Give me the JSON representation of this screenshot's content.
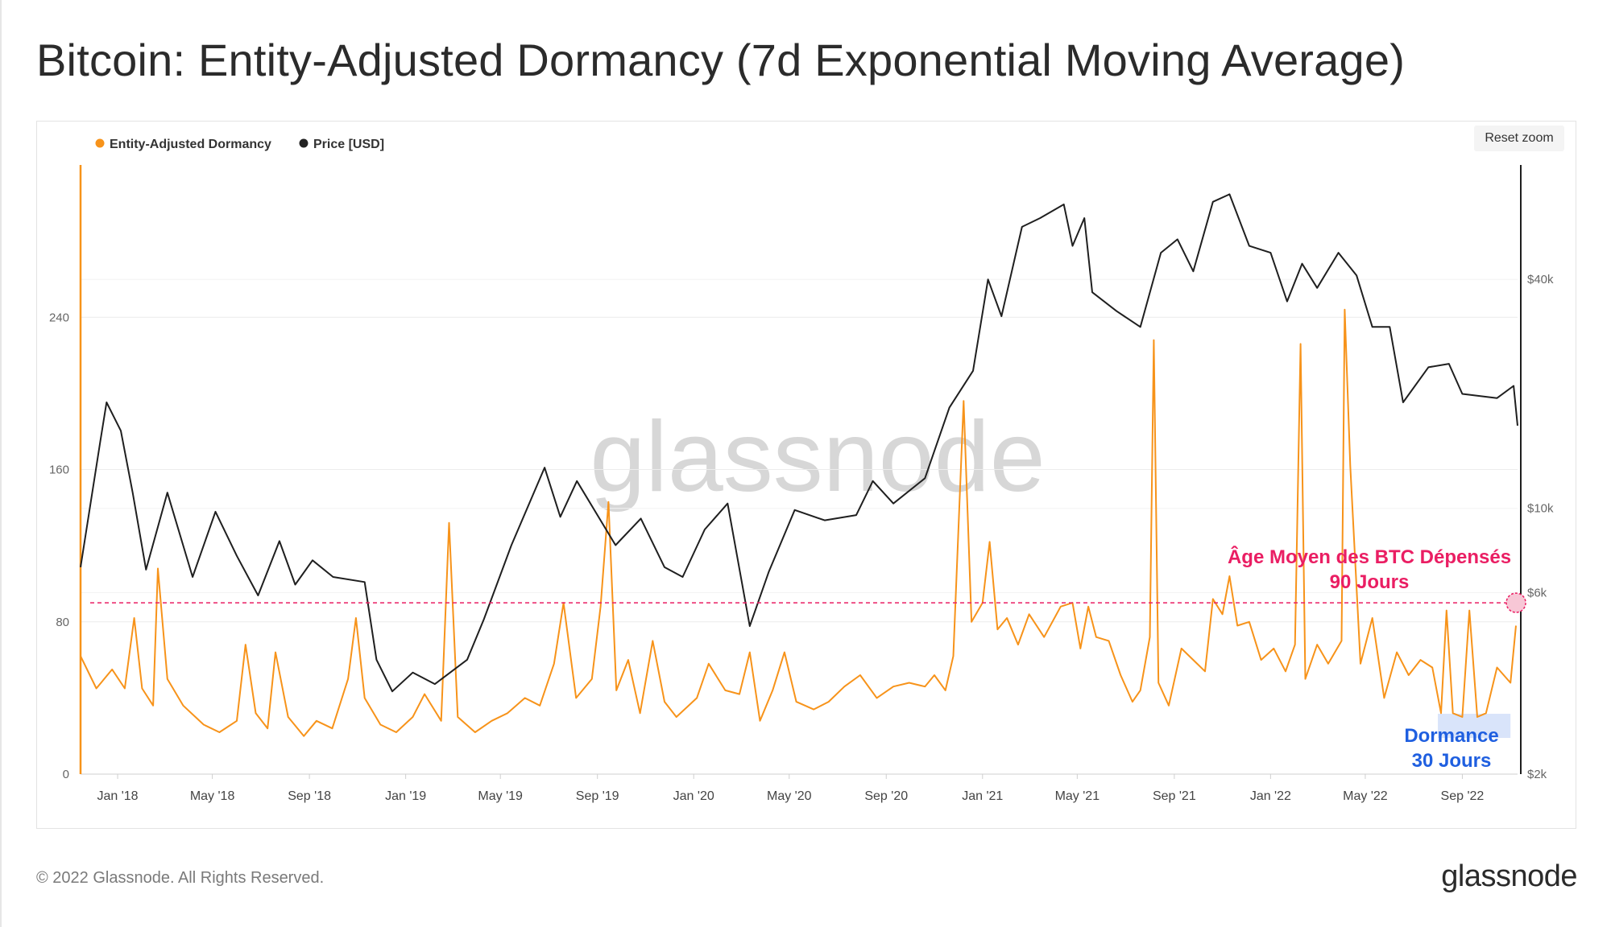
{
  "header": {
    "title": "Bitcoin: Entity-Adjusted Dormancy (7d Exponential Moving Average)"
  },
  "toolbar": {
    "reset_zoom_label": "Reset zoom"
  },
  "footer": {
    "copyright": "© 2022 Glassnode. All Rights Reserved.",
    "logo_text": "glassnode"
  },
  "watermark": "glassnode",
  "colors": {
    "dormancy": "#f7931a",
    "price": "#1f1f1f",
    "threshold": "#ea1e63",
    "annotation_blue": "#1f5fe0"
  },
  "chart_data": {
    "type": "line",
    "title": "Bitcoin: Entity-Adjusted Dormancy (7d Exponential Moving Average)",
    "legend": {
      "position": "top-left",
      "items": [
        "Entity-Adjusted Dormancy",
        "Price [USD]"
      ]
    },
    "x_range": [
      "2017-11-15",
      "2022-11-10"
    ],
    "x_ticks": [
      "Jan '18",
      "May '18",
      "Sep '18",
      "Jan '19",
      "May '19",
      "Sep '19",
      "Jan '20",
      "May '20",
      "Sep '20",
      "Jan '21",
      "May '21",
      "Sep '21",
      "Jan '22",
      "May '22",
      "Sep '22"
    ],
    "x_tick_dates": [
      "2018-01-01",
      "2018-05-01",
      "2018-09-01",
      "2019-01-01",
      "2019-05-01",
      "2019-09-01",
      "2020-01-01",
      "2020-05-01",
      "2020-09-01",
      "2021-01-01",
      "2021-05-01",
      "2021-09-01",
      "2022-01-01",
      "2022-05-01",
      "2022-09-01"
    ],
    "y_left": {
      "ticks": [
        0,
        80,
        160,
        240
      ],
      "tick_labels": [
        "0",
        "80",
        "160",
        "240"
      ],
      "ylim": [
        0,
        320
      ]
    },
    "y_right": {
      "scale": "log",
      "ticks": [
        2000,
        6000,
        10000,
        40000
      ],
      "tick_labels": [
        "$2k",
        "$6k",
        "$10k",
        "$40k"
      ],
      "ylim": [
        2000,
        80000
      ]
    },
    "grid": true,
    "series": [
      {
        "name": "Entity-Adjusted Dormancy",
        "axis": "left",
        "color": "#f7931a",
        "points": [
          [
            "2017-11-15",
            62
          ],
          [
            "2017-12-05",
            45
          ],
          [
            "2017-12-25",
            55
          ],
          [
            "2018-01-10",
            45
          ],
          [
            "2018-01-22",
            82
          ],
          [
            "2018-02-01",
            45
          ],
          [
            "2018-02-15",
            36
          ],
          [
            "2018-02-21",
            108
          ],
          [
            "2018-03-05",
            50
          ],
          [
            "2018-03-25",
            36
          ],
          [
            "2018-04-20",
            26
          ],
          [
            "2018-05-10",
            22
          ],
          [
            "2018-06-01",
            28
          ],
          [
            "2018-06-12",
            68
          ],
          [
            "2018-06-25",
            32
          ],
          [
            "2018-07-10",
            24
          ],
          [
            "2018-07-20",
            64
          ],
          [
            "2018-08-05",
            30
          ],
          [
            "2018-08-25",
            20
          ],
          [
            "2018-09-10",
            28
          ],
          [
            "2018-09-30",
            24
          ],
          [
            "2018-10-20",
            50
          ],
          [
            "2018-10-30",
            82
          ],
          [
            "2018-11-10",
            40
          ],
          [
            "2018-11-30",
            26
          ],
          [
            "2018-12-20",
            22
          ],
          [
            "2019-01-10",
            30
          ],
          [
            "2019-01-25",
            42
          ],
          [
            "2019-02-15",
            28
          ],
          [
            "2019-02-25",
            132
          ],
          [
            "2019-03-08",
            30
          ],
          [
            "2019-03-30",
            22
          ],
          [
            "2019-04-20",
            28
          ],
          [
            "2019-05-10",
            32
          ],
          [
            "2019-06-01",
            40
          ],
          [
            "2019-06-20",
            36
          ],
          [
            "2019-07-08",
            58
          ],
          [
            "2019-07-20",
            90
          ],
          [
            "2019-08-05",
            40
          ],
          [
            "2019-08-25",
            50
          ],
          [
            "2019-09-05",
            88
          ],
          [
            "2019-09-15",
            143
          ],
          [
            "2019-09-25",
            44
          ],
          [
            "2019-10-10",
            60
          ],
          [
            "2019-10-25",
            32
          ],
          [
            "2019-11-10",
            70
          ],
          [
            "2019-11-25",
            38
          ],
          [
            "2019-12-10",
            30
          ],
          [
            "2020-01-05",
            40
          ],
          [
            "2020-01-20",
            58
          ],
          [
            "2020-02-10",
            44
          ],
          [
            "2020-02-28",
            42
          ],
          [
            "2020-03-12",
            64
          ],
          [
            "2020-03-25",
            28
          ],
          [
            "2020-04-10",
            44
          ],
          [
            "2020-04-25",
            64
          ],
          [
            "2020-05-10",
            38
          ],
          [
            "2020-06-01",
            34
          ],
          [
            "2020-06-20",
            38
          ],
          [
            "2020-07-10",
            46
          ],
          [
            "2020-07-30",
            52
          ],
          [
            "2020-08-20",
            40
          ],
          [
            "2020-09-10",
            46
          ],
          [
            "2020-09-30",
            48
          ],
          [
            "2020-10-20",
            46
          ],
          [
            "2020-11-01",
            52
          ],
          [
            "2020-11-15",
            44
          ],
          [
            "2020-11-25",
            62
          ],
          [
            "2020-12-08",
            196
          ],
          [
            "2020-12-18",
            80
          ],
          [
            "2021-01-01",
            90
          ],
          [
            "2021-01-10",
            122
          ],
          [
            "2021-01-20",
            76
          ],
          [
            "2021-02-01",
            82
          ],
          [
            "2021-02-15",
            68
          ],
          [
            "2021-03-01",
            84
          ],
          [
            "2021-03-20",
            72
          ],
          [
            "2021-04-10",
            88
          ],
          [
            "2021-04-25",
            90
          ],
          [
            "2021-05-05",
            66
          ],
          [
            "2021-05-15",
            88
          ],
          [
            "2021-05-25",
            72
          ],
          [
            "2021-06-10",
            70
          ],
          [
            "2021-06-25",
            52
          ],
          [
            "2021-07-10",
            38
          ],
          [
            "2021-07-20",
            44
          ],
          [
            "2021-08-01",
            72
          ],
          [
            "2021-08-06",
            228
          ],
          [
            "2021-08-12",
            48
          ],
          [
            "2021-08-25",
            36
          ],
          [
            "2021-09-10",
            66
          ],
          [
            "2021-09-25",
            60
          ],
          [
            "2021-10-10",
            54
          ],
          [
            "2021-10-20",
            92
          ],
          [
            "2021-11-01",
            84
          ],
          [
            "2021-11-10",
            104
          ],
          [
            "2021-11-20",
            78
          ],
          [
            "2021-12-05",
            80
          ],
          [
            "2021-12-20",
            60
          ],
          [
            "2022-01-05",
            66
          ],
          [
            "2022-01-20",
            54
          ],
          [
            "2022-02-01",
            68
          ],
          [
            "2022-02-08",
            226
          ],
          [
            "2022-02-14",
            50
          ],
          [
            "2022-03-01",
            68
          ],
          [
            "2022-03-15",
            58
          ],
          [
            "2022-04-01",
            70
          ],
          [
            "2022-04-05",
            244
          ],
          [
            "2022-04-12",
            162
          ],
          [
            "2022-04-25",
            58
          ],
          [
            "2022-05-10",
            82
          ],
          [
            "2022-05-25",
            40
          ],
          [
            "2022-06-10",
            64
          ],
          [
            "2022-06-25",
            52
          ],
          [
            "2022-07-10",
            60
          ],
          [
            "2022-07-25",
            56
          ],
          [
            "2022-08-05",
            32
          ],
          [
            "2022-08-12",
            86
          ],
          [
            "2022-08-20",
            32
          ],
          [
            "2022-09-01",
            30
          ],
          [
            "2022-09-10",
            86
          ],
          [
            "2022-09-20",
            30
          ],
          [
            "2022-10-01",
            32
          ],
          [
            "2022-10-15",
            56
          ],
          [
            "2022-11-01",
            48
          ],
          [
            "2022-11-08",
            78
          ]
        ]
      },
      {
        "name": "Price [USD]",
        "axis": "right",
        "color": "#1f1f1f",
        "points": [
          [
            "2017-11-15",
            7000
          ],
          [
            "2017-12-10",
            15000
          ],
          [
            "2017-12-18",
            19000
          ],
          [
            "2018-01-05",
            16000
          ],
          [
            "2018-01-20",
            11000
          ],
          [
            "2018-02-06",
            6900
          ],
          [
            "2018-03-05",
            11000
          ],
          [
            "2018-04-06",
            6600
          ],
          [
            "2018-05-05",
            9800
          ],
          [
            "2018-06-01",
            7500
          ],
          [
            "2018-06-28",
            5900
          ],
          [
            "2018-07-25",
            8200
          ],
          [
            "2018-08-14",
            6300
          ],
          [
            "2018-09-05",
            7300
          ],
          [
            "2018-10-01",
            6600
          ],
          [
            "2018-11-10",
            6400
          ],
          [
            "2018-11-25",
            4000
          ],
          [
            "2018-12-15",
            3300
          ],
          [
            "2019-01-10",
            3700
          ],
          [
            "2019-02-07",
            3450
          ],
          [
            "2019-03-20",
            4000
          ],
          [
            "2019-04-10",
            5100
          ],
          [
            "2019-05-15",
            8000
          ],
          [
            "2019-06-26",
            12800
          ],
          [
            "2019-07-16",
            9500
          ],
          [
            "2019-08-06",
            11800
          ],
          [
            "2019-09-24",
            8000
          ],
          [
            "2019-10-26",
            9400
          ],
          [
            "2019-11-25",
            7000
          ],
          [
            "2019-12-18",
            6600
          ],
          [
            "2020-01-15",
            8800
          ],
          [
            "2020-02-13",
            10300
          ],
          [
            "2020-03-12",
            4900
          ],
          [
            "2020-04-05",
            6800
          ],
          [
            "2020-05-08",
            9900
          ],
          [
            "2020-06-15",
            9300
          ],
          [
            "2020-07-25",
            9600
          ],
          [
            "2020-08-15",
            11800
          ],
          [
            "2020-09-10",
            10300
          ],
          [
            "2020-10-20",
            12000
          ],
          [
            "2020-11-20",
            18400
          ],
          [
            "2020-12-20",
            23000
          ],
          [
            "2021-01-08",
            40000
          ],
          [
            "2021-01-25",
            32000
          ],
          [
            "2021-02-20",
            55000
          ],
          [
            "2021-03-15",
            58000
          ],
          [
            "2021-04-14",
            63000
          ],
          [
            "2021-04-25",
            49000
          ],
          [
            "2021-05-10",
            58000
          ],
          [
            "2021-05-20",
            37000
          ],
          [
            "2021-06-20",
            33000
          ],
          [
            "2021-07-20",
            30000
          ],
          [
            "2021-08-15",
            47000
          ],
          [
            "2021-09-05",
            51000
          ],
          [
            "2021-09-25",
            42000
          ],
          [
            "2021-10-20",
            64000
          ],
          [
            "2021-11-10",
            67000
          ],
          [
            "2021-12-05",
            49000
          ],
          [
            "2022-01-01",
            47000
          ],
          [
            "2022-01-22",
            35000
          ],
          [
            "2022-02-10",
            44000
          ],
          [
            "2022-03-01",
            38000
          ],
          [
            "2022-03-28",
            47000
          ],
          [
            "2022-04-20",
            41000
          ],
          [
            "2022-05-10",
            30000
          ],
          [
            "2022-06-01",
            30000
          ],
          [
            "2022-06-18",
            19000
          ],
          [
            "2022-07-20",
            23500
          ],
          [
            "2022-08-15",
            24000
          ],
          [
            "2022-09-01",
            20000
          ],
          [
            "2022-10-15",
            19500
          ],
          [
            "2022-11-05",
            21000
          ],
          [
            "2022-11-10",
            16500
          ]
        ]
      }
    ],
    "reference_lines": [
      {
        "value": 90,
        "axis": "left",
        "style": "dashed",
        "color": "#ea1e63"
      }
    ],
    "annotations": [
      {
        "text_lines": [
          "Âge Moyen des BTC Dépensés",
          "90 Jours"
        ],
        "color": "#ea1e63"
      },
      {
        "text_lines": [
          "Dormance",
          "30 Jours"
        ],
        "color": "#1f5fe0",
        "highlight_range": [
          "2022-08-01",
          "2022-11-01"
        ]
      }
    ]
  }
}
